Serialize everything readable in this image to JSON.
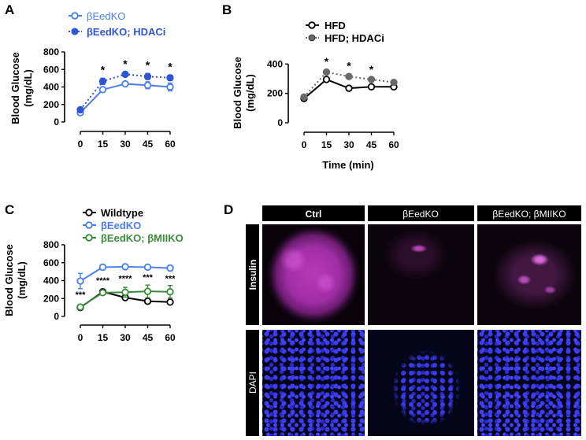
{
  "panels": {
    "A": {
      "letter": "A",
      "ylabel_line1": "Blood Glucose",
      "ylabel_line2": "(mg/dL)",
      "xticks": [
        "0",
        "15",
        "30",
        "45",
        "60"
      ],
      "yticks": [
        "0",
        "200",
        "400",
        "600",
        "800"
      ],
      "legend": [
        "βEedKO",
        "βEedKO; HDACi"
      ],
      "significance": [
        "*",
        "*",
        "*",
        "*"
      ]
    },
    "B": {
      "letter": "B",
      "ylabel_line1": "Blood Glucose",
      "ylabel_line2": "(mg/dL)",
      "xlabel": "Time (min)",
      "xticks": [
        "0",
        "15",
        "30",
        "45",
        "60"
      ],
      "yticks": [
        "0",
        "200",
        "400"
      ],
      "legend": [
        "HFD",
        "HFD; HDACi"
      ],
      "significance": [
        "*",
        "*",
        "*"
      ]
    },
    "C": {
      "letter": "C",
      "ylabel_line1": "Blood Glucose",
      "ylabel_line2": "(mg/dL)",
      "xticks": [
        "0",
        "15",
        "30",
        "45",
        "60"
      ],
      "yticks": [
        "0",
        "200",
        "400",
        "600",
        "800"
      ],
      "legend": [
        "Wildtype",
        "βEedKO",
        "βEedKO; βMIIKO"
      ],
      "significance": [
        "***",
        "****",
        "****",
        "***",
        "***"
      ]
    },
    "D": {
      "letter": "D",
      "columns": [
        "Ctrl",
        "βEedKO",
        "βEedKO; βMIIKO"
      ],
      "rows": [
        "Insulin",
        "DAPI"
      ]
    }
  },
  "colors": {
    "blue": "#4a7fe6",
    "blue_dark": "#2e55d6",
    "green": "#3b8a3b",
    "black": "#000000",
    "gray": "#6a6a6a"
  },
  "chart_data": [
    {
      "panel": "A",
      "type": "line",
      "x": [
        0,
        15,
        30,
        45,
        60
      ],
      "xlim": [
        0,
        60
      ],
      "ylim": [
        0,
        800
      ],
      "ylabel": "Blood Glucose (mg/dL)",
      "series": [
        {
          "name": "βEedKO",
          "values": [
            105,
            370,
            435,
            420,
            400
          ],
          "errors": [
            20,
            25,
            20,
            40,
            45
          ],
          "style": "solid-open"
        },
        {
          "name": "βEedKO; HDACi",
          "values": [
            140,
            465,
            545,
            520,
            505
          ],
          "errors": [
            20,
            35,
            20,
            35,
            30
          ],
          "style": "dotted-filled"
        }
      ],
      "annotations": [
        {
          "x": 15,
          "text": "*"
        },
        {
          "x": 30,
          "text": "*"
        },
        {
          "x": 45,
          "text": "*"
        },
        {
          "x": 60,
          "text": "*"
        }
      ]
    },
    {
      "panel": "B",
      "type": "line",
      "x": [
        0,
        15,
        30,
        45,
        60
      ],
      "xlim": [
        0,
        60
      ],
      "ylim": [
        0,
        450
      ],
      "xlabel": "Time (min)",
      "ylabel": "Blood Glucose (mg/dL)",
      "series": [
        {
          "name": "HFD",
          "values": [
            165,
            295,
            235,
            245,
            245
          ],
          "errors": [
            5,
            8,
            6,
            6,
            6
          ],
          "style": "solid-open"
        },
        {
          "name": "HFD; HDACi",
          "values": [
            175,
            345,
            315,
            295,
            275
          ],
          "errors": [
            8,
            15,
            15,
            10,
            10
          ],
          "style": "dotted-filled"
        }
      ],
      "annotations": [
        {
          "x": 15,
          "text": "*"
        },
        {
          "x": 30,
          "text": "*"
        },
        {
          "x": 45,
          "text": "*"
        }
      ]
    },
    {
      "panel": "C",
      "type": "line",
      "x": [
        0,
        15,
        30,
        45,
        60
      ],
      "xlim": [
        0,
        60
      ],
      "ylim": [
        0,
        800
      ],
      "ylabel": "Blood Glucose (mg/dL)",
      "series": [
        {
          "name": "Wildtype",
          "values": [
            100,
            275,
            210,
            170,
            160
          ],
          "errors": [
            8,
            10,
            15,
            10,
            10
          ],
          "style": "solid-open"
        },
        {
          "name": "βEedKO",
          "values": [
            395,
            550,
            555,
            550,
            540
          ],
          "errors": [
            85,
            30,
            25,
            25,
            30
          ],
          "style": "solid-open"
        },
        {
          "name": "βEedKO; βMIIKO",
          "values": [
            105,
            265,
            270,
            280,
            275
          ],
          "errors": [
            10,
            25,
            55,
            70,
            70
          ],
          "style": "solid-open"
        }
      ],
      "annotations": [
        {
          "x": 0,
          "text": "***"
        },
        {
          "x": 15,
          "text": "****"
        },
        {
          "x": 30,
          "text": "****"
        },
        {
          "x": 45,
          "text": "***"
        },
        {
          "x": 60,
          "text": "***"
        }
      ]
    }
  ]
}
